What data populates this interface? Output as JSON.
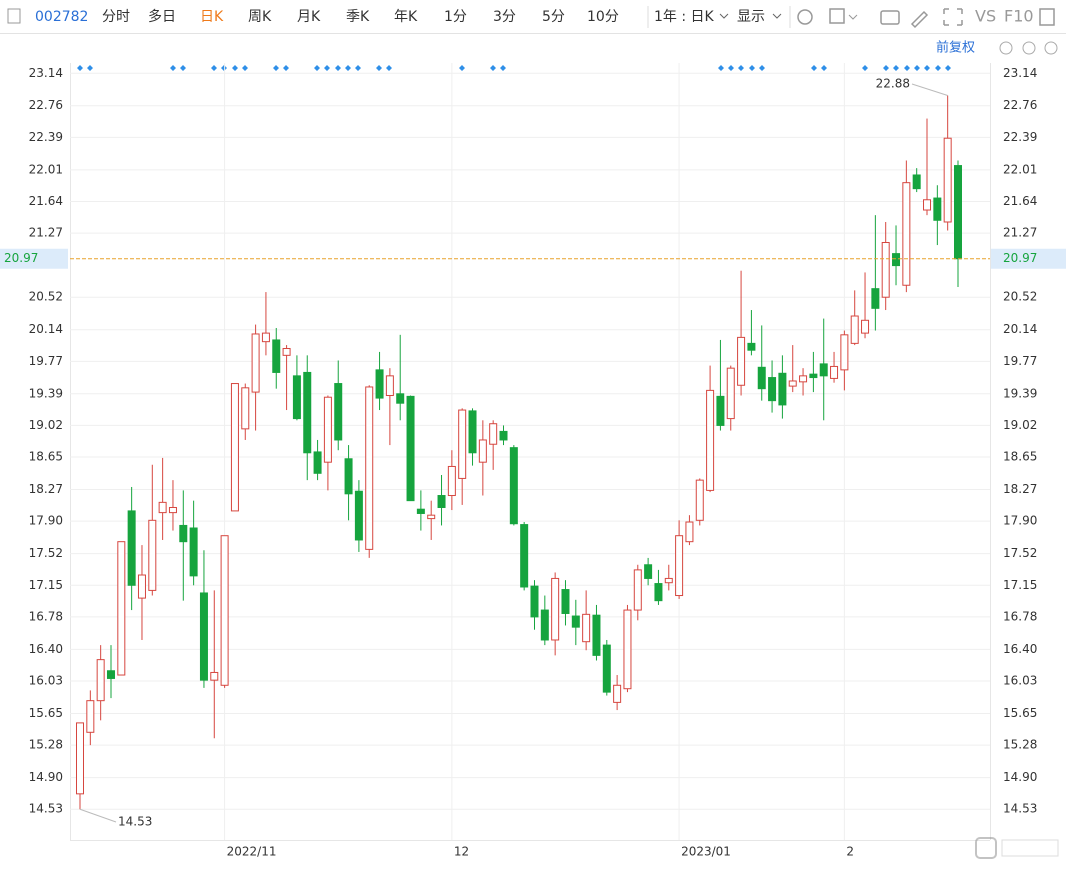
{
  "toolbar": {
    "symbol": "002782",
    "periods": [
      "分时",
      "多日",
      "日K",
      "周K",
      "月K",
      "季K",
      "年K",
      "1分",
      "3分",
      "5分",
      "10分"
    ],
    "active_period": 2,
    "range": "1年 : 日K",
    "display": "显示",
    "vs": "VS",
    "f10": "F10",
    "adjust": "前复权"
  },
  "chart_data": {
    "type": "candlestick",
    "categories": [
      null,
      null,
      null,
      null,
      null,
      null,
      null,
      null,
      null,
      null,
      null,
      null,
      null,
      null,
      "2022/11",
      null,
      null,
      null,
      null,
      null,
      null,
      null,
      null,
      null,
      null,
      null,
      null,
      null,
      null,
      null,
      null,
      null,
      null,
      null,
      null,
      null,
      "12",
      null,
      null,
      null,
      null,
      null,
      null,
      null,
      null,
      null,
      null,
      null,
      null,
      null,
      null,
      null,
      null,
      null,
      null,
      null,
      null,
      null,
      "2023/01",
      null,
      null,
      null,
      null,
      null,
      null,
      null,
      null,
      null,
      null,
      null,
      null,
      null,
      null,
      null,
      "2",
      null,
      null,
      null,
      null,
      null,
      null,
      null,
      null,
      null,
      null,
      null
    ],
    "open": [
      14.71,
      15.43,
      15.8,
      16.15,
      16.1,
      18.02,
      17.0,
      17.09,
      18.0,
      18.0,
      17.85,
      17.82,
      17.06,
      16.04,
      15.98,
      18.02,
      18.98,
      19.41,
      20.0,
      20.02,
      19.84,
      19.6,
      19.64,
      18.71,
      18.59,
      19.51,
      18.63,
      18.25,
      17.57,
      19.67,
      19.37,
      19.39,
      19.36,
      18.04,
      17.93,
      18.2,
      18.2,
      18.4,
      19.19,
      18.59,
      18.8,
      18.95,
      18.76,
      17.86,
      17.14,
      16.86,
      16.51,
      17.1,
      16.79,
      16.49,
      16.8,
      16.45,
      15.78,
      15.94,
      16.86,
      17.39,
      17.17,
      17.18,
      17.03,
      17.66,
      17.91,
      18.26,
      19.36,
      19.1,
      19.49,
      19.98,
      19.7,
      19.58,
      19.63,
      19.48,
      19.53,
      19.62,
      19.74,
      19.57,
      19.67,
      19.98,
      20.1,
      20.62,
      20.52,
      21.03,
      20.66,
      21.95,
      21.54,
      21.68,
      21.4,
      22.06
    ],
    "high": [
      15.54,
      15.92,
      16.45,
      16.45,
      17.66,
      18.3,
      17.62,
      18.56,
      18.64,
      18.38,
      18.26,
      18.14,
      17.56,
      17.09,
      17.73,
      19.51,
      19.51,
      20.2,
      20.58,
      20.16,
      19.96,
      19.84,
      19.84,
      18.85,
      19.37,
      19.78,
      18.79,
      18.38,
      19.49,
      19.88,
      19.69,
      20.08,
      19.37,
      18.26,
      18.14,
      18.44,
      18.73,
      19.22,
      19.22,
      19.08,
      19.08,
      19.02,
      18.79,
      17.89,
      17.21,
      17.03,
      17.3,
      17.21,
      16.98,
      17.09,
      16.92,
      16.51,
      16.1,
      16.92,
      17.39,
      17.47,
      17.33,
      17.39,
      17.91,
      17.97,
      18.4,
      19.72,
      20.02,
      19.72,
      20.83,
      20.37,
      20.19,
      19.78,
      19.84,
      19.96,
      19.69,
      19.88,
      20.27,
      19.88,
      20.13,
      20.6,
      20.81,
      21.48,
      21.4,
      21.36,
      22.12,
      22.03,
      22.61,
      21.83,
      22.88,
      22.12
    ],
    "low": [
      14.53,
      15.28,
      15.57,
      15.83,
      16.1,
      16.86,
      16.51,
      17.03,
      17.68,
      17.79,
      16.97,
      17.15,
      15.95,
      15.36,
      15.95,
      18.02,
      18.85,
      18.96,
      19.84,
      19.45,
      19.2,
      19.08,
      18.38,
      18.38,
      18.26,
      18.73,
      17.91,
      17.54,
      17.47,
      19.2,
      18.79,
      19.08,
      18.14,
      17.79,
      17.68,
      17.85,
      18.03,
      18.09,
      18.55,
      18.2,
      18.5,
      18.79,
      17.85,
      17.09,
      16.63,
      16.45,
      16.33,
      16.68,
      16.45,
      16.39,
      16.27,
      15.86,
      15.69,
      15.9,
      16.74,
      17.15,
      16.92,
      17.09,
      16.99,
      17.62,
      17.85,
      18.24,
      18.96,
      18.96,
      19.37,
      19.84,
      19.31,
      19.17,
      19.1,
      19.41,
      19.37,
      19.41,
      19.08,
      19.52,
      19.43,
      19.96,
      20.04,
      20.13,
      20.37,
      20.66,
      20.58,
      21.75,
      21.48,
      21.13,
      21.3,
      20.64
    ],
    "close": [
      15.54,
      15.8,
      16.28,
      16.06,
      17.66,
      17.15,
      17.27,
      17.91,
      18.12,
      18.06,
      17.66,
      17.26,
      16.04,
      16.13,
      17.73,
      19.51,
      19.46,
      20.09,
      20.1,
      19.64,
      19.92,
      19.1,
      18.7,
      18.46,
      19.35,
      18.85,
      18.22,
      17.68,
      19.47,
      19.34,
      19.6,
      19.28,
      18.14,
      17.99,
      17.97,
      18.06,
      18.54,
      19.2,
      18.7,
      18.85,
      19.04,
      18.85,
      17.87,
      17.13,
      16.78,
      16.51,
      17.23,
      16.82,
      16.66,
      16.81,
      16.33,
      15.9,
      15.98,
      16.86,
      17.33,
      17.23,
      16.97,
      17.23,
      17.73,
      17.89,
      18.38,
      19.43,
      19.02,
      19.69,
      20.05,
      19.9,
      19.45,
      19.31,
      19.26,
      19.54,
      19.6,
      19.58,
      19.6,
      19.71,
      20.08,
      20.3,
      20.25,
      20.39,
      21.16,
      20.89,
      21.86,
      21.79,
      21.66,
      21.42,
      22.38,
      20.97
    ],
    "up_color": "#d6463f",
    "down_color": "#16a43e",
    "ylim": [
      14.17,
      23.26
    ],
    "yticks": [
      14.53,
      {
        "value": 14.9,
        "label": "14.90"
      },
      15.28,
      15.65,
      16.03,
      {
        "value": 16.4,
        "label": "16.40"
      },
      16.78,
      17.15,
      17.52,
      {
        "value": 17.9,
        "label": "17.90"
      },
      18.27,
      18.65,
      19.02,
      19.39,
      19.77,
      20.14,
      20.52,
      21.27,
      21.64,
      22.01,
      22.39,
      22.76,
      23.14
    ],
    "last_price": 20.97,
    "last_color": "#e8a22c",
    "max_label": 22.88,
    "min_label": 14.53,
    "grid": true
  }
}
